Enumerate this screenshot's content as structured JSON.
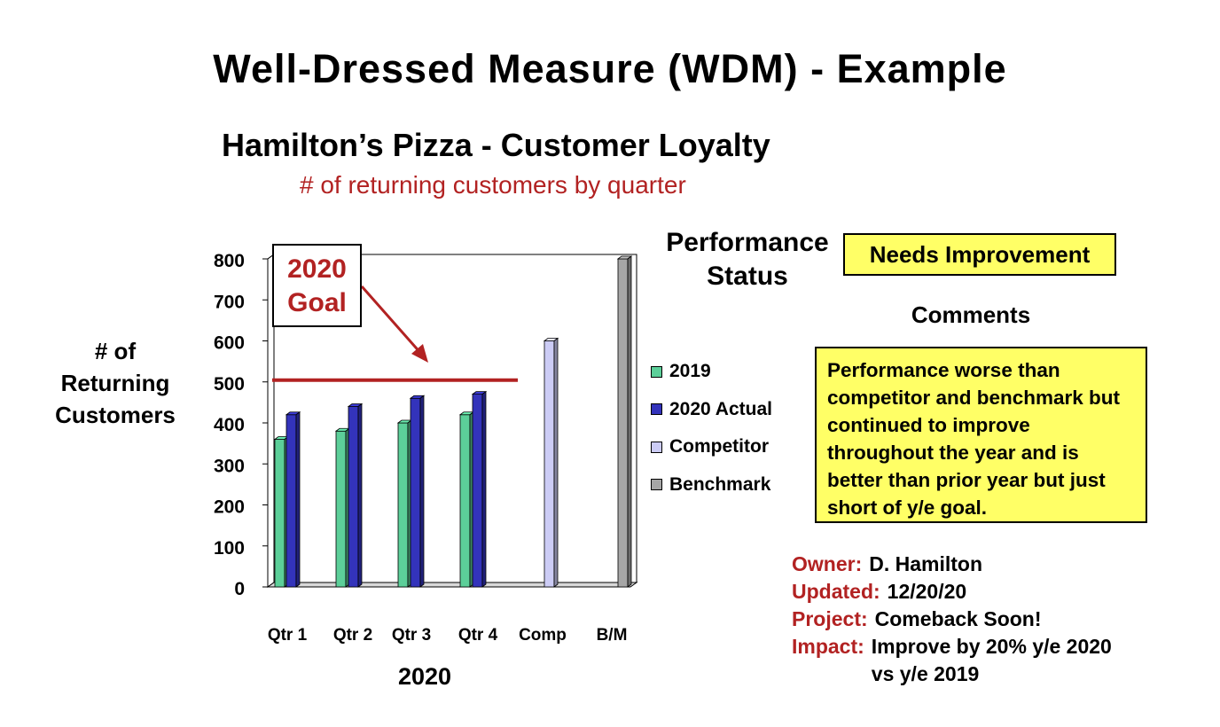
{
  "slide_title": "Well-Dressed Measure (WDM) - Example",
  "performance": {
    "label_line1": "Performance",
    "label_line2": "Status",
    "status": "Needs Improvement"
  },
  "comments": {
    "label": "Comments",
    "text": "Performance worse than competitor and benchmark but continued to improve throughout the year and is better than prior year but just short of y/e goal."
  },
  "meta": {
    "owner_label": "Owner:",
    "owner": "D. Hamilton",
    "updated_label": "Updated:",
    "updated": "12/20/20",
    "project_label": "Project:",
    "project": "Comeback Soon!",
    "impact_label": "Impact:",
    "impact_line1": "Improve by 20% y/e 2020",
    "impact_line2": "vs y/e 2019"
  },
  "annotation": {
    "line1": "2020",
    "line2": "Goal"
  },
  "colors": {
    "s2019": "#5ccf99",
    "s2020": "#3333bb",
    "competitor": "#ccccf5",
    "benchmark": "#a6a6a6",
    "goal": "#b22222"
  },
  "chart_data": {
    "type": "bar",
    "title": "Hamilton’s Pizza - Customer Loyalty",
    "subtitle": "# of returning customers by quarter",
    "ylabel_lines": [
      "# of",
      "Returning",
      "Customers"
    ],
    "xlabel": "2020",
    "categories": [
      "Qtr 1",
      "Qtr 2",
      "Qtr 3",
      "Qtr 4",
      "Comp",
      "B/M"
    ],
    "series": [
      {
        "name": "2019",
        "values": [
          360,
          380,
          400,
          420,
          null,
          null
        ]
      },
      {
        "name": "2020 Actual",
        "values": [
          420,
          440,
          460,
          470,
          null,
          null
        ]
      },
      {
        "name": "Competitor",
        "values": [
          null,
          null,
          null,
          null,
          600,
          null
        ]
      },
      {
        "name": "Benchmark",
        "values": [
          null,
          null,
          null,
          null,
          null,
          800
        ]
      }
    ],
    "goal": 500,
    "ylim": [
      0,
      800
    ],
    "yticks": [
      0,
      100,
      200,
      300,
      400,
      500,
      600,
      700,
      800
    ],
    "grid": true,
    "legend": "right"
  }
}
